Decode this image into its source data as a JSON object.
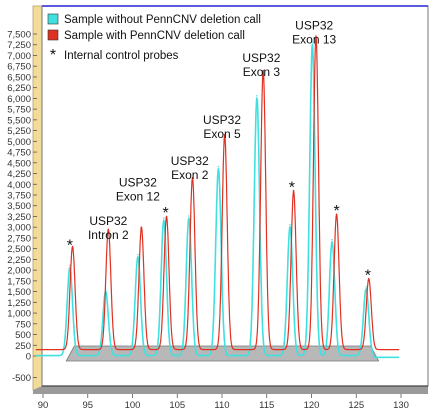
{
  "chart_data": {
    "type": "line",
    "title": "",
    "xlabel": "",
    "ylabel": "",
    "xlim": [
      89,
      130
    ],
    "ylim": [
      -600,
      7800
    ],
    "x_ticks": [
      90,
      95,
      100,
      105,
      110,
      115,
      120,
      125,
      130
    ],
    "x_tick_labels": [
      "90",
      "95",
      "100",
      "105",
      "110",
      "115",
      "120",
      "125",
      "130"
    ],
    "y_ticks": [
      -500,
      0,
      250,
      500,
      750,
      1000,
      1250,
      1500,
      1750,
      2000,
      2250,
      2500,
      2750,
      3000,
      3250,
      3500,
      3750,
      4000,
      4250,
      4500,
      4750,
      5000,
      5250,
      5500,
      5750,
      6000,
      6250,
      6500,
      6750,
      7000,
      7250,
      7500
    ],
    "y_tick_labels": [
      "-500",
      "0",
      "250",
      "500",
      "750",
      "1,000",
      "1,250",
      "1,500",
      "1,750",
      "2,000",
      "2,250",
      "2,500",
      "2,750",
      "3,000",
      "3,250",
      "3,500",
      "3,750",
      "4,000",
      "4,250",
      "4,500",
      "4,750",
      "5,000",
      "5,250",
      "5,500",
      "5,750",
      "6,000",
      "6,250",
      "6,500",
      "6,750",
      "7,000",
      "7,250",
      "7,500"
    ],
    "grid": false,
    "legend_position": "top-left",
    "legend": [
      {
        "label": "Sample without PennCNV deletion call",
        "color": "#40e0e0"
      },
      {
        "label": "Sample with PennCNV deletion call",
        "color": "#e03020"
      },
      {
        "label": "Internal control probes",
        "marker": "*"
      }
    ],
    "series": [
      {
        "name": "Sample without PennCNV deletion call",
        "color": "#40e0e0",
        "peaks": [
          {
            "x": 93.0,
            "y": 2050
          },
          {
            "x": 97.0,
            "y": 1500
          },
          {
            "x": 100.6,
            "y": 2300
          },
          {
            "x": 103.5,
            "y": 3150
          },
          {
            "x": 106.3,
            "y": 3200
          },
          {
            "x": 109.6,
            "y": 4350
          },
          {
            "x": 113.9,
            "y": 6000
          },
          {
            "x": 117.6,
            "y": 3000
          },
          {
            "x": 120.1,
            "y": 7250
          },
          {
            "x": 122.3,
            "y": 2650
          },
          {
            "x": 126.1,
            "y": 1550
          }
        ]
      },
      {
        "name": "Sample with PennCNV deletion call",
        "color": "#e03020",
        "peaks": [
          {
            "x": 93.3,
            "y": 2400
          },
          {
            "x": 97.3,
            "y": 2800
          },
          {
            "x": 101.0,
            "y": 2850
          },
          {
            "x": 103.8,
            "y": 3100
          },
          {
            "x": 106.7,
            "y": 4000
          },
          {
            "x": 110.3,
            "y": 5000
          },
          {
            "x": 114.6,
            "y": 6500
          },
          {
            "x": 118.0,
            "y": 3700
          },
          {
            "x": 120.5,
            "y": 7300
          },
          {
            "x": 122.8,
            "y": 3150
          },
          {
            "x": 126.4,
            "y": 1650
          }
        ]
      }
    ],
    "annotations": [
      {
        "text": "*",
        "x": 93.0,
        "y": 2600
      },
      {
        "text": "USP32\nIntron 2",
        "x": 97.3,
        "y": 3050
      },
      {
        "text": "USP32\nExon 12",
        "x": 100.6,
        "y": 3950
      },
      {
        "text": "*",
        "x": 103.7,
        "y": 3350
      },
      {
        "text": "USP32\nExon 2",
        "x": 106.4,
        "y": 4450
      },
      {
        "text": "USP32\nExon 5",
        "x": 110.0,
        "y": 5400
      },
      {
        "text": "USP32\nExon 3",
        "x": 114.4,
        "y": 6850
      },
      {
        "text": "*",
        "x": 117.8,
        "y": 3950
      },
      {
        "text": "USP32\nExon 13",
        "x": 120.3,
        "y": 7600
      },
      {
        "text": "*",
        "x": 122.8,
        "y": 3400
      },
      {
        "text": "*",
        "x": 126.3,
        "y": 1900
      }
    ]
  }
}
